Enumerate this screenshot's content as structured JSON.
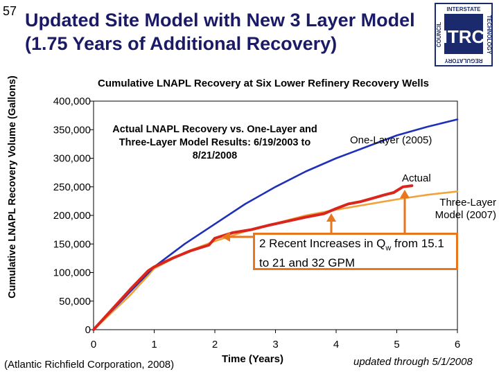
{
  "slide_number": "57",
  "title": {
    "line1": "Updated Site Model with New 3 Layer Model",
    "line2": "(1.75 Years of Additional Recovery)"
  },
  "logo": {
    "center": "ITRC",
    "top": "INTERSTATE",
    "left": "COUNCIL",
    "right": "TECHNOLOGY",
    "bottom": "REGULATORY"
  },
  "annotations": {
    "box_text": "Actual LNAPL Recovery vs. One-Layer and Three-Layer Model Results: 6/19/2003 to 8/21/2008",
    "one_layer": "One-Layer (2005)",
    "actual": "Actual",
    "three_layer": "Three-Layer Model (2007)",
    "callout_pre": "2 Recent Increases in Q",
    "callout_sub": "w",
    "callout_post": " from 15.1 to 21 and 32 GPM"
  },
  "footer": {
    "source": "(Atlantic Richfield Corporation, 2008)",
    "updated": "updated through 5/1/2008"
  },
  "colors": {
    "title": "#1a1a66",
    "one_layer": "#1f2fb8",
    "actual": "#d9261c",
    "three_layer": "#f2a23a",
    "callout": "#e8761e"
  },
  "chart_data": {
    "type": "line",
    "title": "Cumulative LNAPL Recovery at Six Lower Refinery Recovery Wells",
    "xlabel": "Time (Years)",
    "ylabel": "Cumulative LNAPL Recovery Volume (Gallons)",
    "xlim": [
      0,
      6
    ],
    "ylim": [
      0,
      400000
    ],
    "x_ticks": [
      "0",
      "1",
      "2",
      "3",
      "4",
      "5",
      "6"
    ],
    "y_ticks": [
      "0",
      "50,000",
      "100,000",
      "150,000",
      "200,000",
      "250,000",
      "300,000",
      "350,000",
      "400,000"
    ],
    "series": [
      {
        "name": "One-Layer (2005)",
        "color": "#1f2fb8",
        "x": [
          0,
          0.5,
          1.0,
          1.5,
          2.0,
          2.5,
          3.0,
          3.5,
          4.0,
          4.5,
          5.0,
          5.5,
          6.0
        ],
        "y": [
          0,
          55000,
          110000,
          150000,
          185000,
          220000,
          250000,
          277000,
          300000,
          320000,
          340000,
          355000,
          368000
        ]
      },
      {
        "name": "Actual",
        "color": "#d9261c",
        "x": [
          0,
          0.3,
          0.6,
          0.9,
          1.0,
          1.3,
          1.6,
          1.9,
          2.0,
          2.3,
          2.6,
          2.9,
          3.2,
          3.5,
          3.8,
          4.0,
          4.2,
          4.4,
          4.6,
          4.8,
          4.95,
          5.1,
          5.25
        ],
        "y": [
          0,
          35000,
          70000,
          103000,
          110000,
          125000,
          138000,
          148000,
          160000,
          170000,
          175000,
          183000,
          190000,
          197000,
          203000,
          212000,
          220000,
          224000,
          230000,
          236000,
          240000,
          250000,
          252000
        ]
      },
      {
        "name": "Three-Layer Model (2007)",
        "color": "#f2a23a",
        "x": [
          0,
          0.3,
          0.6,
          0.9,
          1.0,
          1.5,
          2.0,
          2.5,
          3.0,
          3.5,
          4.0,
          4.5,
          5.0,
          5.5,
          6.0
        ],
        "y": [
          0,
          30000,
          60000,
          95000,
          107000,
          135000,
          155000,
          172000,
          186000,
          200000,
          210000,
          219000,
          228000,
          236000,
          242000
        ]
      }
    ]
  }
}
